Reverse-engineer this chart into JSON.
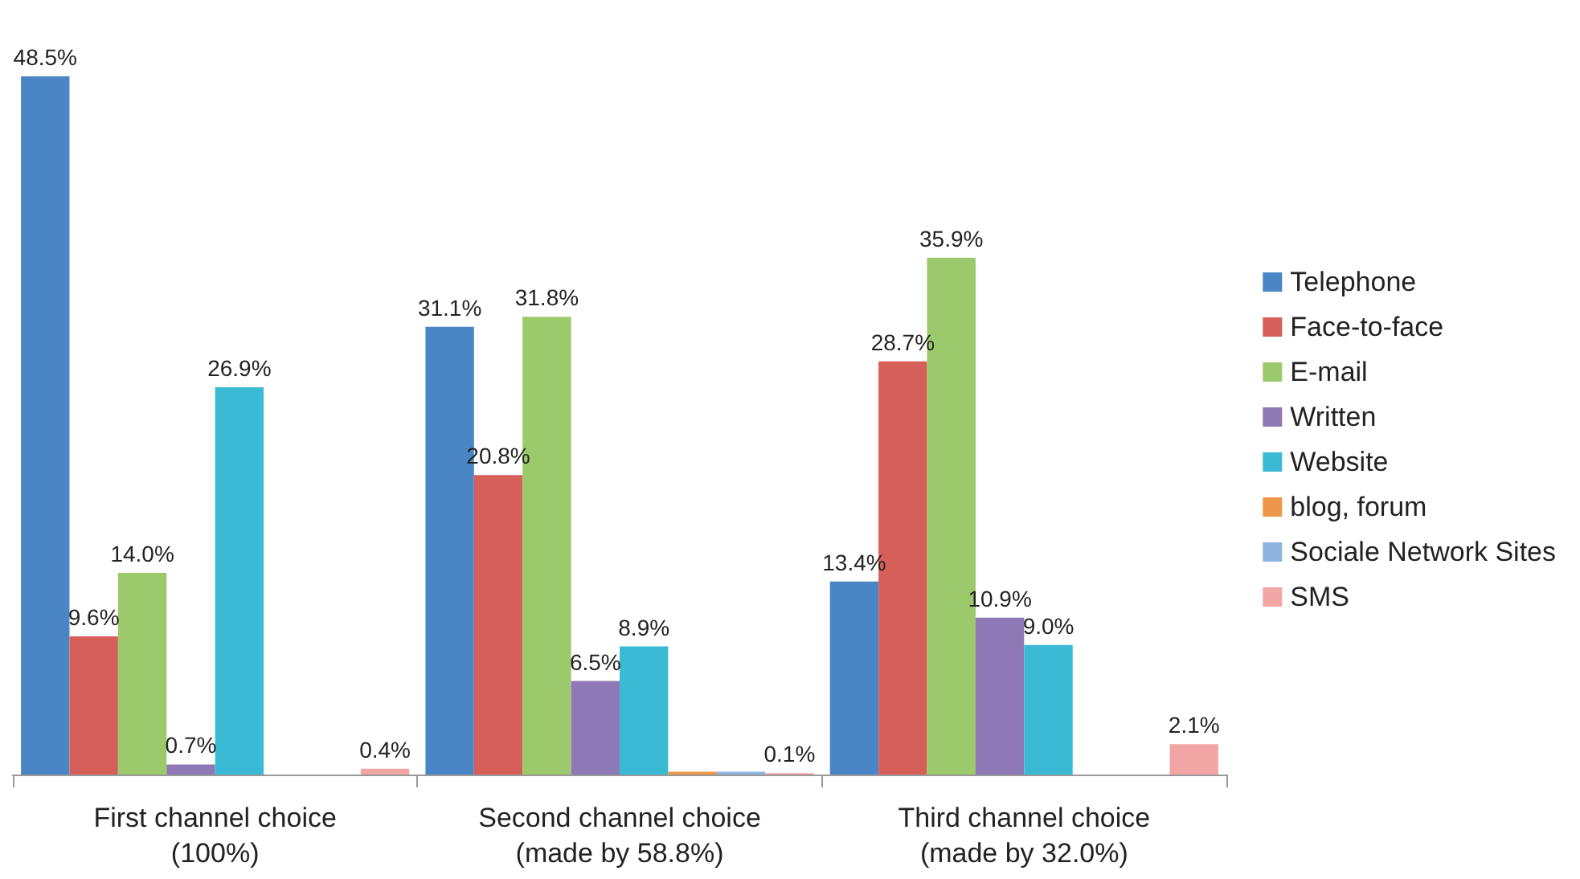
{
  "chart_data": {
    "type": "bar",
    "categories": [
      "First channel choice\n(100%)",
      "Second channel choice\n(made by 58.8%)",
      "Third channel choice\n(made by 32.0%)"
    ],
    "series": [
      {
        "name": "Telephone",
        "color": "#4a86c5",
        "values": [
          48.5,
          31.1,
          13.4
        ],
        "value_labels": [
          "48.5%",
          "31.1%",
          "13.4%"
        ]
      },
      {
        "name": "Face-to-face",
        "color": "#d65f5a",
        "values": [
          9.6,
          20.8,
          28.7
        ],
        "value_labels": [
          "9.6%",
          "20.8%",
          "28.7%"
        ]
      },
      {
        "name": "E-mail",
        "color": "#9bc96b",
        "values": [
          14.0,
          31.8,
          35.9
        ],
        "value_labels": [
          "14.0%",
          "31.8%",
          "35.9%"
        ]
      },
      {
        "name": "Written",
        "color": "#8e78b5",
        "values": [
          0.7,
          6.5,
          10.9
        ],
        "value_labels": [
          "0.7%",
          "6.5%",
          "10.9%"
        ]
      },
      {
        "name": "Website",
        "color": "#3bbad6",
        "values": [
          26.9,
          8.9,
          9.0
        ],
        "value_labels": [
          "26.9%",
          "8.9%",
          "9.0%"
        ]
      },
      {
        "name": "blog, forum",
        "color": "#f0964a",
        "values": [
          null,
          0.2,
          null
        ],
        "value_labels": [
          null,
          null,
          null
        ]
      },
      {
        "name": "Sociale Network Sites",
        "color": "#8db3de",
        "values": [
          null,
          0.2,
          null
        ],
        "value_labels": [
          null,
          null,
          null
        ]
      },
      {
        "name": "SMS",
        "color": "#f2a5a5",
        "values": [
          0.4,
          0.1,
          2.1
        ],
        "value_labels": [
          "0.4%",
          "0.1%",
          "2.1%"
        ]
      }
    ],
    "legend": "right"
  }
}
